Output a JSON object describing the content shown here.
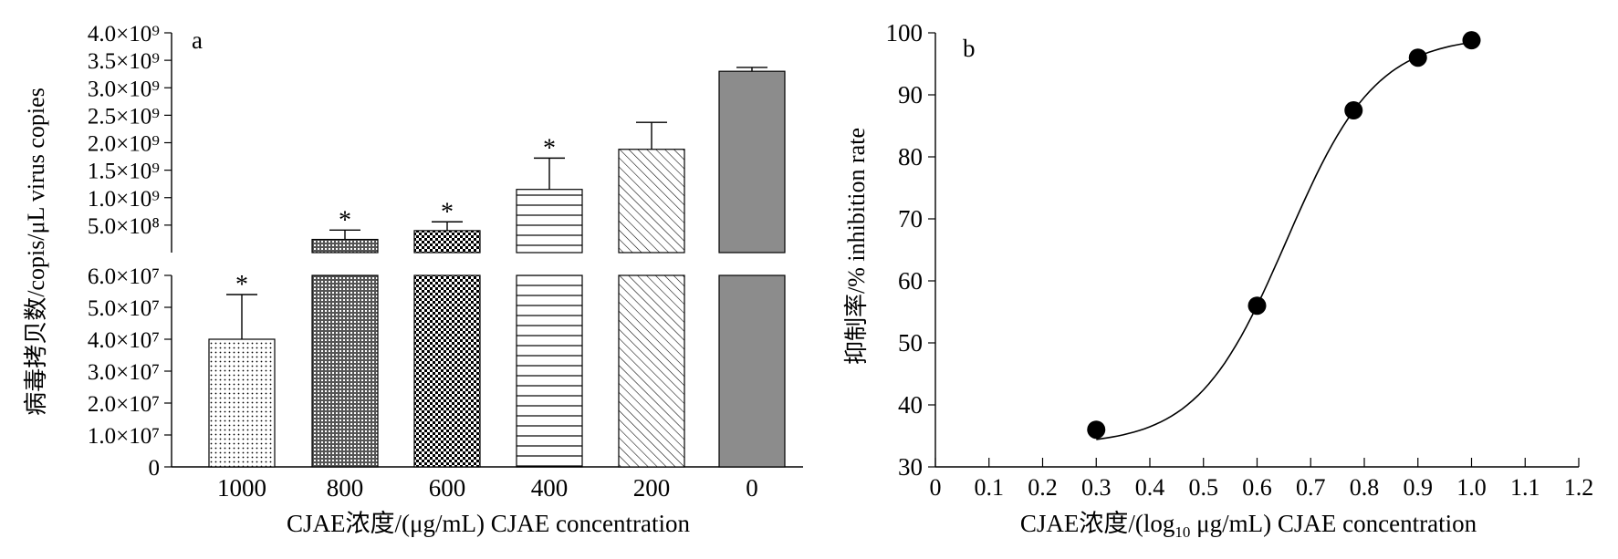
{
  "chart_data": [
    {
      "type": "bar",
      "panel_label": "a",
      "categories": [
        "1000",
        "800",
        "600",
        "400",
        "200",
        "0"
      ],
      "values": [
        40000000,
        240000000,
        400000000,
        1150000000,
        1880000000,
        3300000000
      ],
      "error_upper": [
        54000000,
        410000000,
        560000000,
        1720000000,
        2370000000,
        3370000000
      ],
      "significance": [
        "*",
        "*",
        "*",
        "*",
        "",
        ""
      ],
      "patterns": [
        "dots",
        "dense-cross",
        "checker",
        "hlines",
        "diagonal",
        "solid"
      ],
      "xlabel": "CJAE浓度/(μg/mL) CJAE concentration",
      "ylabel": "病毒拷贝数/copis/μL virus copies",
      "broken_axis": true,
      "lower_ylim": [
        0,
        60000000
      ],
      "lower_ticks": [
        "0",
        "1.0×10⁷",
        "2.0×10⁷",
        "3.0×10⁷",
        "4.0×10⁷",
        "5.0×10⁷",
        "6.0×10⁷"
      ],
      "upper_ylim": [
        0,
        4000000000
      ],
      "upper_ticks": [
        "5.0×10⁸",
        "1.0×10⁹",
        "1.5×10⁹",
        "2.0×10⁹",
        "2.5×10⁹",
        "3.0×10⁹",
        "3.5×10⁹",
        "4.0×10⁹"
      ],
      "bar_color": "#8c8c8c"
    },
    {
      "type": "scatter",
      "panel_label": "b",
      "x": [
        0.3,
        0.6,
        0.78,
        0.9,
        1.0
      ],
      "y": [
        36,
        56,
        87.5,
        96,
        98.8
      ],
      "fit_curve": "sigmoid",
      "xlabel_parts": [
        "CJAE浓度/(log",
        "10",
        " μg/mL) CJAE concentration"
      ],
      "ylabel": "抑制率/% inhibition rate",
      "xlim": [
        0,
        1.2
      ],
      "ylim": [
        30,
        100
      ],
      "xticks": [
        "0",
        "0.1",
        "0.2",
        "0.3",
        "0.4",
        "0.5",
        "0.6",
        "0.7",
        "0.8",
        "0.9",
        "1.0",
        "1.1",
        "1.2"
      ],
      "yticks": [
        "30",
        "40",
        "50",
        "60",
        "70",
        "80",
        "90",
        "100"
      ]
    }
  ]
}
